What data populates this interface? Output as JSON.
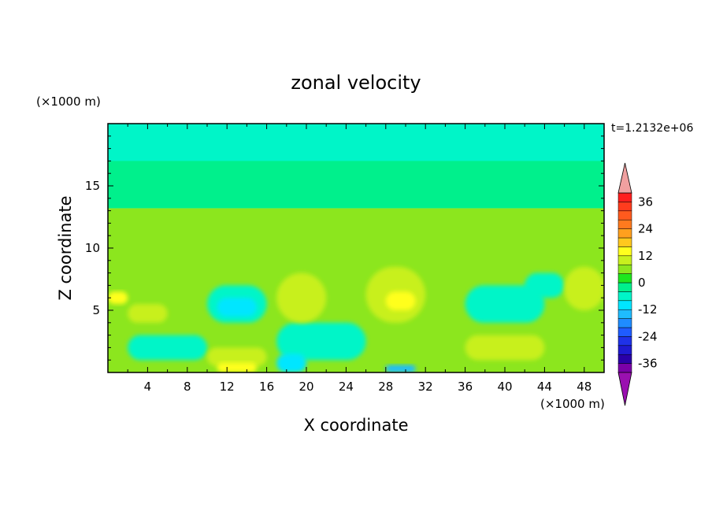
{
  "chart_data": {
    "type": "heatmap",
    "title": "zonal velocity",
    "xlabel": "X coordinate",
    "ylabel": "Z coordinate",
    "x_unit": "(×1000 m)",
    "y_unit": "(×1000 m)",
    "time_label": "t=1.2132e+06",
    "xlim": [
      0,
      50
    ],
    "ylim": [
      0,
      20
    ],
    "x_ticks": [
      4,
      8,
      12,
      16,
      20,
      24,
      28,
      32,
      36,
      40,
      44,
      48
    ],
    "y_ticks": [
      5,
      10,
      15
    ],
    "colorbar": {
      "ticks": [
        36,
        24,
        12,
        0,
        -12,
        -24,
        -36
      ],
      "levels": [
        -40,
        -36,
        -32,
        -28,
        -24,
        -20,
        -16,
        -12,
        -8,
        -4,
        0,
        4,
        8,
        12,
        16,
        20,
        24,
        28,
        32,
        36,
        40
      ],
      "colors": [
        "#7a00a8",
        "#2a00a8",
        "#1f1ad0",
        "#1f32e8",
        "#1f5cff",
        "#1f8cff",
        "#1fbcff",
        "#00e6ff",
        "#00f5c8",
        "#00f08c",
        "#1ee61e",
        "#8ce61e",
        "#c8f01e",
        "#ffff1e",
        "#ffc81e",
        "#ffa01e",
        "#ff7a1e",
        "#ff5a1e",
        "#ff3c1e",
        "#ff1e1e"
      ],
      "extend_low_color": "#9a10b0",
      "extend_high_color": "#f0a0a0"
    },
    "regions": [
      {
        "value": 6,
        "x": [
          0,
          50
        ],
        "y": [
          0,
          13.2
        ]
      },
      {
        "value": -2,
        "x": [
          0,
          50
        ],
        "y": [
          13.2,
          20
        ]
      },
      {
        "value": -6,
        "x": [
          0,
          50
        ],
        "y": [
          17,
          20
        ]
      },
      {
        "value": -6,
        "x": [
          10,
          16
        ],
        "y": [
          4,
          7
        ]
      },
      {
        "value": -6,
        "x": [
          36,
          44
        ],
        "y": [
          4,
          7
        ]
      },
      {
        "value": -6,
        "x": [
          42,
          46
        ],
        "y": [
          6,
          8
        ]
      },
      {
        "value": -6,
        "x": [
          2,
          10
        ],
        "y": [
          1,
          3
        ]
      },
      {
        "value": -6,
        "x": [
          17,
          26
        ],
        "y": [
          1,
          4
        ]
      },
      {
        "value": -10,
        "x": [
          11,
          15
        ],
        "y": [
          4.5,
          6
        ]
      },
      {
        "value": -10,
        "x": [
          17,
          20
        ],
        "y": [
          0,
          1.5
        ]
      },
      {
        "value": -14,
        "x": [
          28,
          31
        ],
        "y": [
          0,
          0.6
        ]
      },
      {
        "value": 10,
        "x": [
          17,
          22
        ],
        "y": [
          4,
          8
        ]
      },
      {
        "value": 10,
        "x": [
          26,
          32
        ],
        "y": [
          4,
          8.5
        ]
      },
      {
        "value": 10,
        "x": [
          36,
          44
        ],
        "y": [
          1,
          3
        ]
      },
      {
        "value": 10,
        "x": [
          46,
          50
        ],
        "y": [
          5,
          8.5
        ]
      },
      {
        "value": 10,
        "x": [
          2,
          6
        ],
        "y": [
          4,
          5.5
        ]
      },
      {
        "value": 10,
        "x": [
          10,
          16
        ],
        "y": [
          0.5,
          2
        ]
      },
      {
        "value": 14,
        "x": [
          28,
          31
        ],
        "y": [
          5,
          6.5
        ]
      },
      {
        "value": 14,
        "x": [
          11,
          15
        ],
        "y": [
          0,
          0.8
        ]
      },
      {
        "value": 14,
        "x": [
          0,
          2
        ],
        "y": [
          5.5,
          6.5
        ]
      }
    ]
  }
}
